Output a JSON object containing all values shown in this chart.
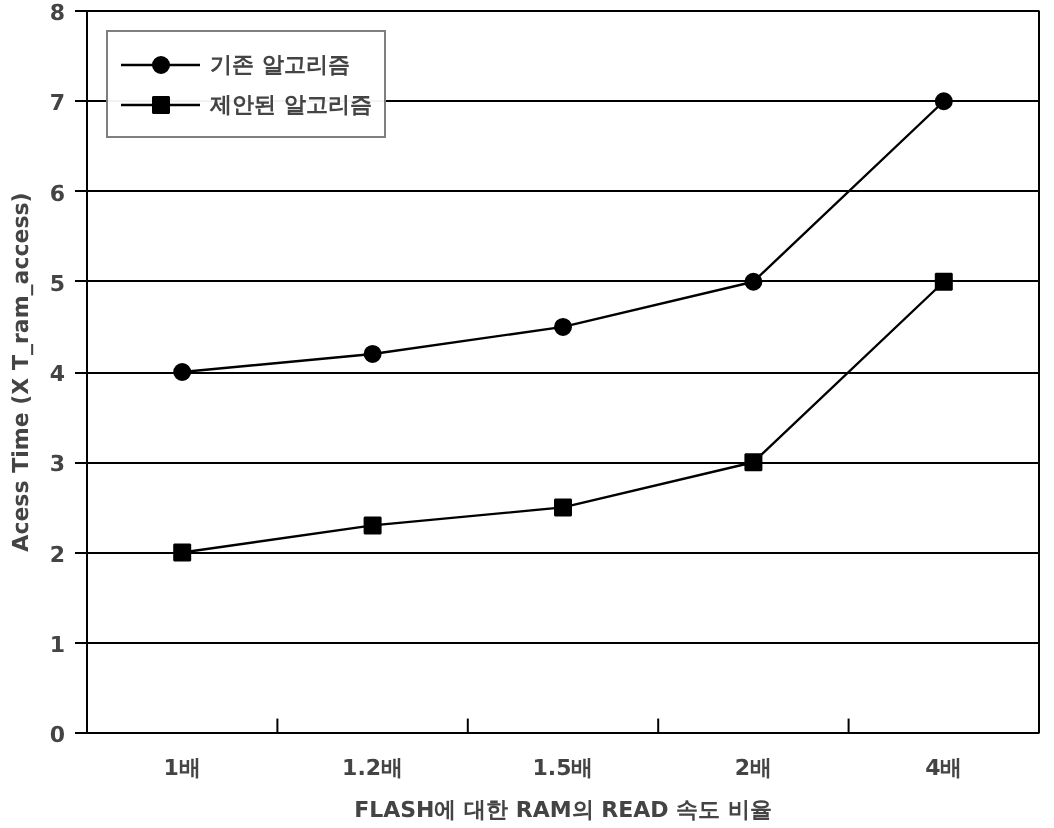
{
  "chart_data": {
    "type": "line",
    "xlabel": "FLASH에 대한 RAM의 READ 속도 비율",
    "ylabel": "Acess Time (X T_ram_access)",
    "categories": [
      "1배",
      "1.2배",
      "1.5배",
      "2배",
      "4배"
    ],
    "ylim": [
      0,
      8
    ],
    "yticks": [
      0,
      1,
      2,
      3,
      4,
      5,
      6,
      7,
      8
    ],
    "grid": "y",
    "legend": "top left",
    "line_style": "solid",
    "series": [
      {
        "name": "기존 알고리즘",
        "color": "#000000",
        "marker": "circle",
        "values": [
          4,
          4.2,
          4.5,
          5,
          7
        ]
      },
      {
        "name": "제안된 알고리즘",
        "color": "#000000",
        "marker": "square",
        "values": [
          2,
          2.3,
          2.5,
          3,
          5
        ]
      }
    ]
  }
}
